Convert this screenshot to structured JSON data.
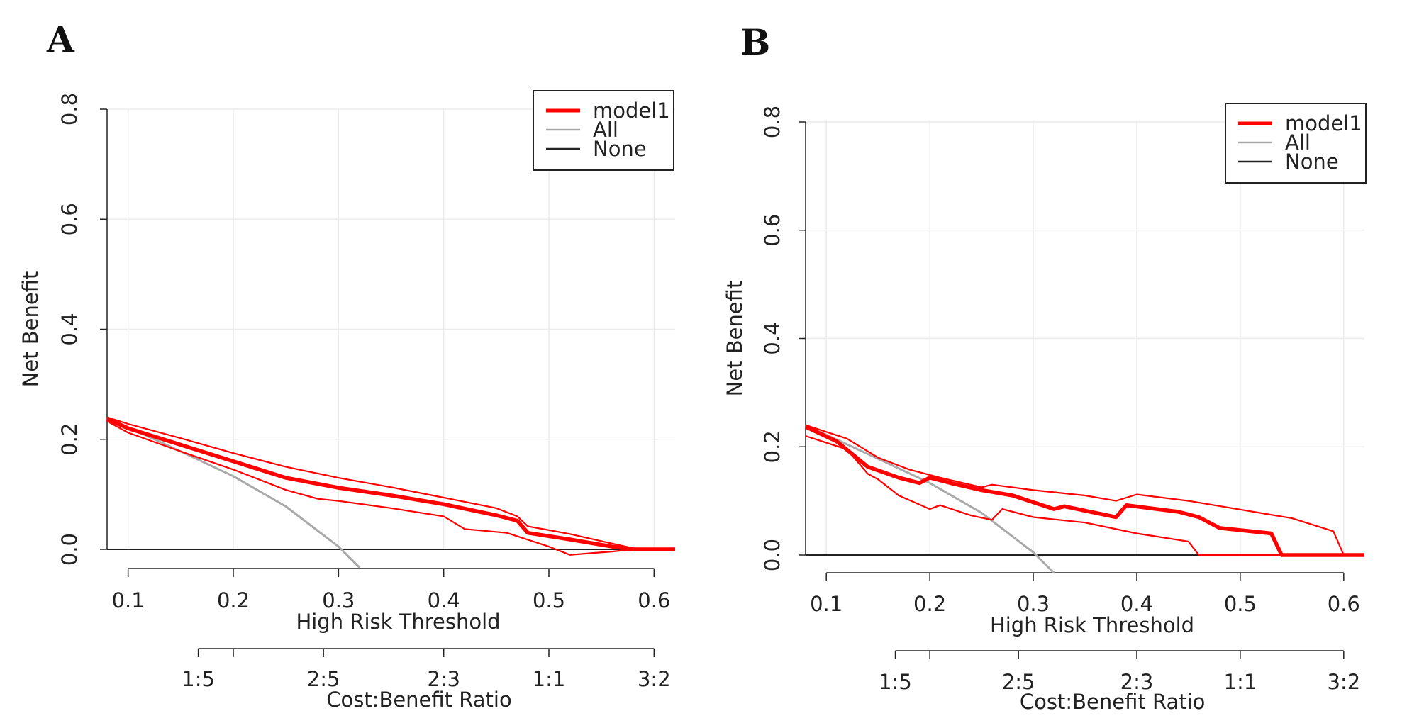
{
  "colors": {
    "model": "#ff0000",
    "all": "#a9a9a9",
    "none": "#222222",
    "grid": "#ececec",
    "axis": "#222222"
  },
  "chart_data": [
    {
      "panel_label": "A",
      "type": "line",
      "xlabel": "High Risk Threshold",
      "ylabel": "Net Benefit",
      "secondary_xlabel": "Cost:Benefit Ratio",
      "xlim": [
        0.08,
        0.62
      ],
      "ylim": [
        0,
        0.8
      ],
      "x_ticks": [
        0.1,
        0.2,
        0.3,
        0.4,
        0.5,
        0.6
      ],
      "x_tick_labels": [
        "0.1",
        "0.2",
        "0.3",
        "0.4",
        "0.5",
        "0.6"
      ],
      "y_ticks": [
        0.0,
        0.2,
        0.4,
        0.6,
        0.8
      ],
      "y_tick_labels": [
        "0.0",
        "0.2",
        "0.4",
        "0.6",
        "0.8"
      ],
      "secondary_ticks": [
        0.1667,
        0.2,
        0.2857,
        0.4,
        0.5,
        0.6
      ],
      "secondary_tick_labels": [
        "1:5",
        "",
        "2:5",
        "2:3",
        "1:1",
        "3:2"
      ],
      "legend": {
        "position": "top-right",
        "entries": [
          {
            "label": "model1",
            "series": "model"
          },
          {
            "label": "All",
            "series": "all"
          },
          {
            "label": "None",
            "series": "none"
          }
        ]
      },
      "series": [
        {
          "name": "model1",
          "role": "model",
          "x": [
            0.08,
            0.1,
            0.15,
            0.2,
            0.25,
            0.3,
            0.35,
            0.4,
            0.45,
            0.47,
            0.48,
            0.52,
            0.56,
            0.58,
            0.62
          ],
          "y": [
            0.237,
            0.22,
            0.19,
            0.16,
            0.13,
            0.112,
            0.098,
            0.082,
            0.062,
            0.052,
            0.03,
            0.018,
            0.005,
            0.0,
            0.0
          ]
        },
        {
          "name": "model1 upper CI",
          "role": "model_ci",
          "x": [
            0.08,
            0.1,
            0.15,
            0.2,
            0.25,
            0.3,
            0.35,
            0.4,
            0.45,
            0.47,
            0.48,
            0.52,
            0.55,
            0.58,
            0.62
          ],
          "y": [
            0.24,
            0.228,
            0.202,
            0.175,
            0.15,
            0.13,
            0.113,
            0.094,
            0.075,
            0.06,
            0.042,
            0.028,
            0.015,
            0.002,
            0.0
          ]
        },
        {
          "name": "model1 lower CI",
          "role": "model_ci",
          "x": [
            0.08,
            0.1,
            0.15,
            0.2,
            0.25,
            0.28,
            0.3,
            0.35,
            0.4,
            0.42,
            0.46,
            0.5,
            0.52,
            0.54,
            0.56,
            0.58,
            0.62
          ],
          "y": [
            0.233,
            0.212,
            0.178,
            0.145,
            0.108,
            0.092,
            0.088,
            0.075,
            0.06,
            0.037,
            0.03,
            0.005,
            -0.01,
            -0.007,
            -0.004,
            0.0,
            0.0
          ]
        },
        {
          "name": "All",
          "role": "all",
          "x": [
            0.08,
            0.1,
            0.15,
            0.2,
            0.25,
            0.3,
            0.32
          ],
          "y": [
            0.24,
            0.222,
            0.178,
            0.133,
            0.078,
            0.005,
            -0.033
          ]
        },
        {
          "name": "None",
          "role": "none",
          "x": [
            0.08,
            0.62
          ],
          "y": [
            0.0,
            0.0
          ]
        }
      ]
    },
    {
      "panel_label": "B",
      "type": "line",
      "xlabel": "High Risk Threshold",
      "ylabel": "Net Benefit",
      "secondary_xlabel": "Cost:Benefit Ratio",
      "xlim": [
        0.08,
        0.62
      ],
      "ylim": [
        0,
        0.8
      ],
      "x_ticks": [
        0.1,
        0.2,
        0.3,
        0.4,
        0.5,
        0.6
      ],
      "x_tick_labels": [
        "0.1",
        "0.2",
        "0.3",
        "0.4",
        "0.5",
        "0.6"
      ],
      "y_ticks": [
        0.0,
        0.2,
        0.4,
        0.6,
        0.8
      ],
      "y_tick_labels": [
        "0.0",
        "0.2",
        "0.4",
        "0.6",
        "0.8"
      ],
      "secondary_ticks": [
        0.1667,
        0.2,
        0.2857,
        0.4,
        0.5,
        0.6
      ],
      "secondary_tick_labels": [
        "1:5",
        "",
        "2:5",
        "2:3",
        "1:1",
        "3:2"
      ],
      "legend": {
        "position": "top-right",
        "entries": [
          {
            "label": "model1",
            "series": "model"
          },
          {
            "label": "All",
            "series": "all"
          },
          {
            "label": "None",
            "series": "none"
          }
        ]
      },
      "series": [
        {
          "name": "model1",
          "role": "model",
          "x": [
            0.08,
            0.11,
            0.14,
            0.17,
            0.19,
            0.2,
            0.22,
            0.25,
            0.28,
            0.32,
            0.33,
            0.38,
            0.39,
            0.44,
            0.46,
            0.48,
            0.53,
            0.54,
            0.62
          ],
          "y": [
            0.237,
            0.21,
            0.163,
            0.143,
            0.133,
            0.143,
            0.133,
            0.12,
            0.11,
            0.085,
            0.09,
            0.07,
            0.092,
            0.08,
            0.07,
            0.05,
            0.04,
            0.0,
            0.0
          ]
        },
        {
          "name": "model1 upper CI",
          "role": "model_ci",
          "x": [
            0.08,
            0.12,
            0.15,
            0.18,
            0.21,
            0.25,
            0.26,
            0.3,
            0.35,
            0.38,
            0.4,
            0.45,
            0.5,
            0.55,
            0.59,
            0.6,
            0.62
          ],
          "y": [
            0.24,
            0.215,
            0.18,
            0.158,
            0.143,
            0.125,
            0.13,
            0.12,
            0.11,
            0.1,
            0.112,
            0.1,
            0.084,
            0.068,
            0.044,
            0.0,
            0.0
          ]
        },
        {
          "name": "model1 lower CI",
          "role": "model_ci",
          "x": [
            0.08,
            0.12,
            0.14,
            0.15,
            0.17,
            0.2,
            0.21,
            0.24,
            0.26,
            0.27,
            0.3,
            0.35,
            0.4,
            0.45,
            0.46,
            0.62
          ],
          "y": [
            0.22,
            0.195,
            0.15,
            0.14,
            0.11,
            0.085,
            0.092,
            0.073,
            0.065,
            0.085,
            0.07,
            0.06,
            0.04,
            0.025,
            0.0,
            0.0
          ]
        },
        {
          "name": "All",
          "role": "all",
          "x": [
            0.08,
            0.1,
            0.15,
            0.2,
            0.25,
            0.3,
            0.32
          ],
          "y": [
            0.24,
            0.222,
            0.178,
            0.133,
            0.078,
            0.005,
            -0.033
          ]
        },
        {
          "name": "None",
          "role": "none",
          "x": [
            0.08,
            0.62
          ],
          "y": [
            0.0,
            0.0
          ]
        }
      ]
    }
  ]
}
